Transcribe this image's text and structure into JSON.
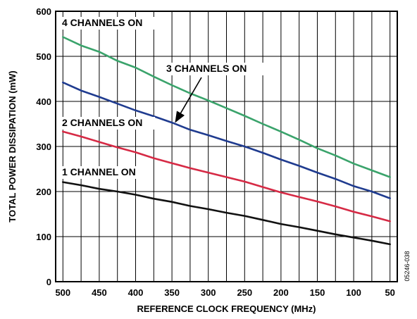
{
  "chart_data": {
    "type": "line",
    "xlabel": "REFERENCE CLOCK FREQUENCY (MHz)",
    "ylabel": "TOTAL POWER DISSIPATION (mW)",
    "xlim": [
      510,
      40
    ],
    "ylim": [
      0,
      600
    ],
    "x_reversed": true,
    "grid": true,
    "x_gridlines": [
      500,
      475,
      450,
      425,
      400,
      375,
      350,
      325,
      300,
      275,
      250,
      225,
      200,
      175,
      150,
      125,
      100,
      75,
      50
    ],
    "y_gridlines": [
      0,
      100,
      200,
      300,
      400,
      500,
      600
    ],
    "x_ticks": [
      {
        "value": 500,
        "label": "500"
      },
      {
        "value": 450,
        "label": "450"
      },
      {
        "value": 400,
        "label": "400"
      },
      {
        "value": 350,
        "label": "350"
      },
      {
        "value": 300,
        "label": "300"
      },
      {
        "value": 250,
        "label": "250"
      },
      {
        "value": 200,
        "label": "200"
      },
      {
        "value": 150,
        "label": "150"
      },
      {
        "value": 100,
        "label": "100"
      },
      {
        "value": 50,
        "label": "50"
      }
    ],
    "y_ticks": [
      {
        "value": 0,
        "label": "0"
      },
      {
        "value": 100,
        "label": "100"
      },
      {
        "value": 200,
        "label": "200"
      },
      {
        "value": 300,
        "label": "300"
      },
      {
        "value": 400,
        "label": "400"
      },
      {
        "value": 500,
        "label": "500"
      },
      {
        "value": 600,
        "label": "600"
      }
    ],
    "x": [
      500,
      475,
      450,
      425,
      400,
      375,
      350,
      325,
      300,
      275,
      250,
      225,
      200,
      175,
      150,
      125,
      100,
      75,
      50
    ],
    "series": [
      {
        "name": "4 CHANNELS ON",
        "color": "#3aa36b",
        "values": [
          543,
          524,
          510,
          490,
          475,
          455,
          436,
          418,
          402,
          385,
          368,
          350,
          333,
          315,
          296,
          280,
          262,
          247,
          232
        ]
      },
      {
        "name": "3 CHANNELS ON",
        "color": "#1f3b8f",
        "values": [
          442,
          424,
          410,
          395,
          380,
          367,
          353,
          337,
          325,
          312,
          300,
          286,
          271,
          257,
          242,
          228,
          212,
          200,
          185
        ]
      },
      {
        "name": "2 CHANNELS ON",
        "color": "#d62a45",
        "values": [
          333,
          322,
          310,
          298,
          287,
          274,
          263,
          252,
          242,
          232,
          222,
          210,
          198,
          188,
          178,
          167,
          155,
          145,
          134
        ]
      },
      {
        "name": "1 CHANNEL ON",
        "color": "#111111",
        "values": [
          221,
          214,
          206,
          200,
          193,
          184,
          177,
          168,
          161,
          153,
          146,
          137,
          128,
          121,
          113,
          105,
          98,
          91,
          83
        ]
      }
    ],
    "annotations": [
      {
        "text": "4 CHANNELS ON",
        "series": "4 CHANNELS ON"
      },
      {
        "text": "3 CHANNELS ON",
        "series": "3 CHANNELS ON",
        "arrow": true
      },
      {
        "text": "2 CHANNELS ON",
        "series": "2 CHANNELS ON"
      },
      {
        "text": "1 CHANNEL ON",
        "series": "1 CHANNEL ON"
      }
    ],
    "side_code": "05246-038"
  }
}
